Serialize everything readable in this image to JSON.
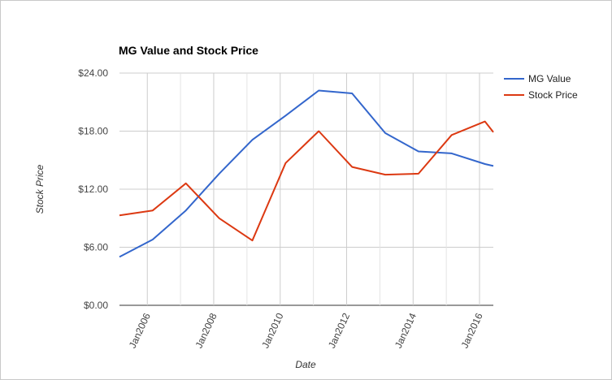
{
  "chart_data": {
    "type": "line",
    "title": "MG Value and Stock Price",
    "xlabel": "Date",
    "ylabel": "Stock Price",
    "ylim": [
      0,
      24
    ],
    "xlim": [
      "2005-03-01",
      "2016-06-01"
    ],
    "y_ticks": [
      "$0.00",
      "$6.00",
      "$12.00",
      "$18.00",
      "$24.00"
    ],
    "y_tick_values": [
      0,
      6,
      12,
      18,
      24
    ],
    "x_ticks": [
      "Jan2006",
      "Jan2008",
      "Jan2010",
      "Jan2012",
      "Jan2014",
      "Jan2016"
    ],
    "x_tick_dates": [
      "2006-01-01",
      "2008-01-01",
      "2010-01-01",
      "2012-01-01",
      "2014-01-01",
      "2016-01-01"
    ],
    "grid": true,
    "legend_position": "right",
    "series": [
      {
        "name": "MG Value",
        "color": "#3366cc",
        "points": [
          {
            "date": "2005-03-01",
            "value": 5.0
          },
          {
            "date": "2006-03-01",
            "value": 6.8
          },
          {
            "date": "2007-03-01",
            "value": 9.8
          },
          {
            "date": "2008-03-01",
            "value": 13.6
          },
          {
            "date": "2009-03-01",
            "value": 17.1
          },
          {
            "date": "2010-03-01",
            "value": 19.6
          },
          {
            "date": "2011-03-01",
            "value": 22.2
          },
          {
            "date": "2012-03-01",
            "value": 21.9
          },
          {
            "date": "2013-03-01",
            "value": 17.8
          },
          {
            "date": "2014-03-01",
            "value": 15.9
          },
          {
            "date": "2015-03-01",
            "value": 15.7
          },
          {
            "date": "2016-03-01",
            "value": 14.6
          },
          {
            "date": "2016-06-01",
            "value": 14.4
          }
        ]
      },
      {
        "name": "Stock Price",
        "color": "#dc3912",
        "points": [
          {
            "date": "2005-03-01",
            "value": 9.3
          },
          {
            "date": "2006-03-01",
            "value": 9.8
          },
          {
            "date": "2007-03-01",
            "value": 12.6
          },
          {
            "date": "2008-03-01",
            "value": 9.0
          },
          {
            "date": "2009-03-01",
            "value": 6.7
          },
          {
            "date": "2010-03-01",
            "value": 14.7
          },
          {
            "date": "2011-03-01",
            "value": 18.0
          },
          {
            "date": "2012-03-01",
            "value": 14.3
          },
          {
            "date": "2013-03-01",
            "value": 13.5
          },
          {
            "date": "2014-03-01",
            "value": 13.6
          },
          {
            "date": "2015-03-01",
            "value": 17.6
          },
          {
            "date": "2016-03-01",
            "value": 19.0
          },
          {
            "date": "2016-06-01",
            "value": 17.9
          }
        ]
      }
    ]
  }
}
